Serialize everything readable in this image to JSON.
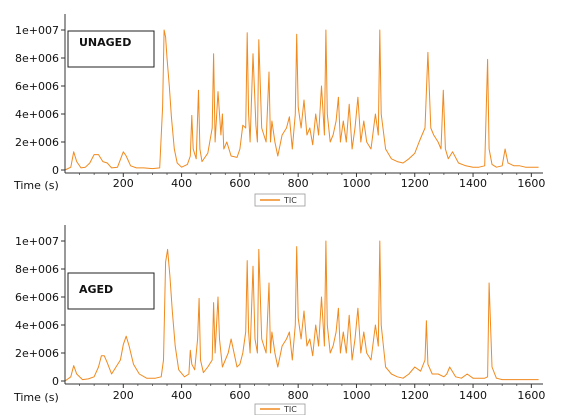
{
  "chart_data": [
    {
      "type": "line",
      "label": "UNAGED",
      "xlabel": "Time (s)",
      "ylabel": "",
      "xlim": [
        0,
        1640
      ],
      "ylim": [
        0,
        10000000
      ],
      "x_ticks": [
        "200",
        "400",
        "600",
        "800",
        "1000",
        "1200",
        "1400",
        "1600"
      ],
      "y_ticks": [
        "0",
        "2e+006",
        "4e+006",
        "6e+006",
        "8e+006",
        "1e+007"
      ],
      "legend": {
        "entries": [
          "TIC"
        ],
        "placement": "bottom-center"
      },
      "color": "#f08a1e",
      "series": [
        {
          "name": "TIC",
          "x": [
            0,
            20,
            30,
            40,
            55,
            70,
            85,
            100,
            115,
            130,
            145,
            160,
            180,
            200,
            210,
            225,
            245,
            270,
            300,
            325,
            335,
            340,
            345,
            350,
            358,
            365,
            375,
            385,
            400,
            420,
            430,
            435,
            440,
            450,
            458,
            463,
            470,
            490,
            505,
            510,
            515,
            525,
            535,
            540,
            545,
            555,
            570,
            590,
            600,
            610,
            620,
            625,
            630,
            635,
            645,
            655,
            660,
            665,
            675,
            690,
            700,
            705,
            710,
            720,
            730,
            745,
            760,
            770,
            780,
            790,
            795,
            800,
            810,
            820,
            830,
            840,
            850,
            860,
            870,
            880,
            890,
            895,
            900,
            910,
            920,
            930,
            938,
            945,
            955,
            965,
            975,
            985,
            995,
            1005,
            1015,
            1025,
            1035,
            1050,
            1065,
            1075,
            1080,
            1085,
            1100,
            1120,
            1140,
            1160,
            1180,
            1200,
            1215,
            1225,
            1235,
            1245,
            1255,
            1265,
            1280,
            1290,
            1298,
            1305,
            1315,
            1330,
            1350,
            1375,
            1400,
            1420,
            1440,
            1450,
            1455,
            1465,
            1480,
            1500,
            1510,
            1520,
            1540,
            1560,
            1580,
            1600,
            1625
          ],
          "values": [
            0,
            200000,
            1300000,
            600000,
            150000,
            200000,
            500000,
            1100000,
            1100000,
            600000,
            500000,
            150000,
            200000,
            1300000,
            1000000,
            300000,
            150000,
            150000,
            100000,
            150000,
            4500000,
            10000000,
            9500000,
            8000000,
            6000000,
            3800000,
            1500000,
            500000,
            200000,
            400000,
            1000000,
            3900000,
            1500000,
            800000,
            5700000,
            1500000,
            600000,
            1200000,
            3000000,
            8300000,
            2000000,
            5600000,
            2500000,
            4000000,
            1500000,
            2000000,
            1000000,
            900000,
            1500000,
            3200000,
            3000000,
            9800000,
            4000000,
            2000000,
            8300000,
            3200000,
            2000000,
            9300000,
            3000000,
            2000000,
            7000000,
            2000000,
            3500000,
            2000000,
            1000000,
            2500000,
            3000000,
            3800000,
            1500000,
            4000000,
            9700000,
            4500000,
            3000000,
            5000000,
            2500000,
            3000000,
            1800000,
            4000000,
            2500000,
            6000000,
            2500000,
            10000000,
            4000000,
            2000000,
            2500000,
            3500000,
            5200000,
            2000000,
            3500000,
            2000000,
            4700000,
            1500000,
            3000000,
            5200000,
            2000000,
            3500000,
            2000000,
            1500000,
            4000000,
            2500000,
            10000000,
            4000000,
            1500000,
            800000,
            600000,
            500000,
            800000,
            1200000,
            2000000,
            2500000,
            3000000,
            8400000,
            3000000,
            2500000,
            2000000,
            1500000,
            5700000,
            1500000,
            800000,
            1300000,
            500000,
            300000,
            200000,
            200000,
            300000,
            7900000,
            1500000,
            400000,
            200000,
            300000,
            1500000,
            500000,
            300000,
            300000,
            200000,
            200000,
            200000
          ]
        }
      ]
    },
    {
      "type": "line",
      "label": "AGED",
      "xlabel": "Time (s)",
      "ylabel": "",
      "xlim": [
        0,
        1640
      ],
      "ylim": [
        0,
        10000000
      ],
      "x_ticks": [
        "200",
        "400",
        "600",
        "800",
        "1000",
        "1200",
        "1400",
        "1600"
      ],
      "y_ticks": [
        "0",
        "2e+006",
        "4e+006",
        "6e+006",
        "8e+006",
        "1e+007"
      ],
      "legend": {
        "entries": [
          "TIC"
        ],
        "placement": "bottom-center"
      },
      "color": "#f08a1e",
      "series": [
        {
          "name": "TIC",
          "x": [
            0,
            20,
            30,
            40,
            60,
            80,
            100,
            115,
            125,
            135,
            145,
            160,
            175,
            190,
            200,
            210,
            220,
            235,
            255,
            280,
            310,
            330,
            338,
            345,
            352,
            360,
            368,
            378,
            390,
            410,
            425,
            430,
            435,
            445,
            455,
            460,
            465,
            475,
            490,
            505,
            510,
            515,
            525,
            530,
            540,
            550,
            560,
            570,
            590,
            600,
            610,
            620,
            625,
            630,
            635,
            645,
            652,
            660,
            665,
            675,
            690,
            700,
            705,
            710,
            720,
            730,
            745,
            760,
            770,
            780,
            790,
            795,
            800,
            810,
            820,
            830,
            840,
            850,
            860,
            870,
            880,
            890,
            895,
            900,
            910,
            920,
            930,
            938,
            945,
            955,
            965,
            975,
            985,
            995,
            1005,
            1015,
            1025,
            1035,
            1050,
            1065,
            1075,
            1080,
            1085,
            1100,
            1120,
            1140,
            1160,
            1180,
            1200,
            1220,
            1235,
            1240,
            1245,
            1260,
            1280,
            1300,
            1310,
            1320,
            1340,
            1360,
            1380,
            1400,
            1420,
            1440,
            1450,
            1455,
            1465,
            1480,
            1500,
            1520,
            1540,
            1560,
            1580,
            1600,
            1625
          ],
          "values": [
            0,
            300000,
            1100000,
            500000,
            100000,
            150000,
            300000,
            1000000,
            1800000,
            1800000,
            1300000,
            500000,
            1000000,
            1500000,
            2600000,
            3200000,
            2500000,
            1200000,
            500000,
            200000,
            200000,
            300000,
            1500000,
            8500000,
            9400000,
            7500000,
            5000000,
            2500000,
            800000,
            300000,
            500000,
            2200000,
            1200000,
            800000,
            3000000,
            5900000,
            1500000,
            600000,
            1000000,
            1500000,
            5600000,
            2000000,
            6000000,
            3000000,
            1000000,
            1500000,
            2000000,
            3000000,
            1000000,
            1200000,
            2000000,
            3500000,
            8600000,
            3500000,
            2000000,
            8200000,
            3000000,
            2000000,
            9400000,
            3000000,
            2000000,
            7000000,
            2000000,
            3500000,
            2000000,
            1000000,
            2500000,
            3000000,
            3500000,
            1500000,
            4000000,
            9600000,
            4500000,
            3000000,
            5000000,
            2500000,
            3000000,
            1800000,
            4000000,
            2500000,
            6000000,
            2500000,
            10000000,
            4000000,
            2000000,
            2500000,
            3500000,
            5200000,
            2000000,
            3500000,
            2000000,
            4700000,
            1500000,
            3000000,
            5200000,
            2000000,
            3500000,
            2000000,
            1500000,
            4000000,
            2500000,
            10000000,
            4000000,
            1000000,
            500000,
            300000,
            200000,
            500000,
            1000000,
            700000,
            1500000,
            4300000,
            1200000,
            500000,
            500000,
            300000,
            500000,
            1000000,
            300000,
            200000,
            500000,
            200000,
            200000,
            200000,
            300000,
            7000000,
            1000000,
            200000,
            100000,
            100000,
            100000,
            100000,
            100000,
            100000,
            100000
          ]
        }
      ]
    }
  ]
}
